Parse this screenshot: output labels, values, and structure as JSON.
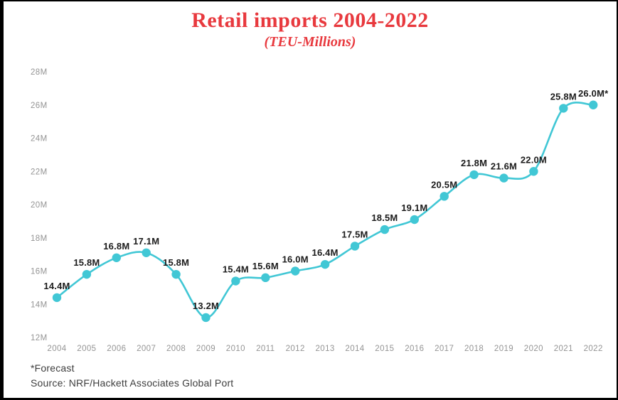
{
  "page": {
    "title": "Retail imports 2004-2022",
    "subtitle": "(TEU-Millions)",
    "footnote": "*Forecast",
    "source": "Source: NRF/Hackett Associates Global Port"
  },
  "colors": {
    "accent_red": "#e8393e",
    "line_teal": "#41c7d5",
    "point_teal": "#41c7d5",
    "value_label_dark": "#1b1b1b",
    "axis_gray": "#949494",
    "footer_gray": "#3d3d3d"
  },
  "chart_data": {
    "type": "line",
    "title": "Retail imports 2004-2022",
    "subtitle": "(TEU-Millions)",
    "x": [
      2004,
      2005,
      2006,
      2007,
      2008,
      2009,
      2010,
      2011,
      2012,
      2013,
      2014,
      2015,
      2016,
      2017,
      2018,
      2019,
      2020,
      2021,
      2022
    ],
    "values": [
      14.4,
      15.8,
      16.8,
      17.1,
      15.8,
      13.2,
      15.4,
      15.6,
      16.0,
      16.4,
      17.5,
      18.5,
      19.1,
      20.5,
      21.8,
      21.6,
      22.0,
      25.8,
      26.0
    ],
    "point_labels": [
      "14.4M",
      "15.8M",
      "16.8M",
      "17.1M",
      "15.8M",
      "13.2M",
      "15.4M",
      "15.6M",
      "16.0M",
      "16.4M",
      "17.5M",
      "18.5M",
      "19.1M",
      "20.5M",
      "21.8M",
      "21.6M",
      "22.0M",
      "25.8M",
      "26.0M*"
    ],
    "y_tick_labels": [
      "28M",
      "26M",
      "24M",
      "22M",
      "20M",
      "18M",
      "16M",
      "14M",
      "12M"
    ],
    "y_tick_values": [
      28,
      26,
      24,
      22,
      20,
      18,
      16,
      14,
      12
    ],
    "ylim": [
      12,
      28
    ],
    "y_tick_step": 2,
    "xlabel": "",
    "ylabel": "",
    "grid": false,
    "legend": false,
    "annotation": "*Forecast",
    "source": "Source: NRF/Hackett Associates Global Port"
  }
}
